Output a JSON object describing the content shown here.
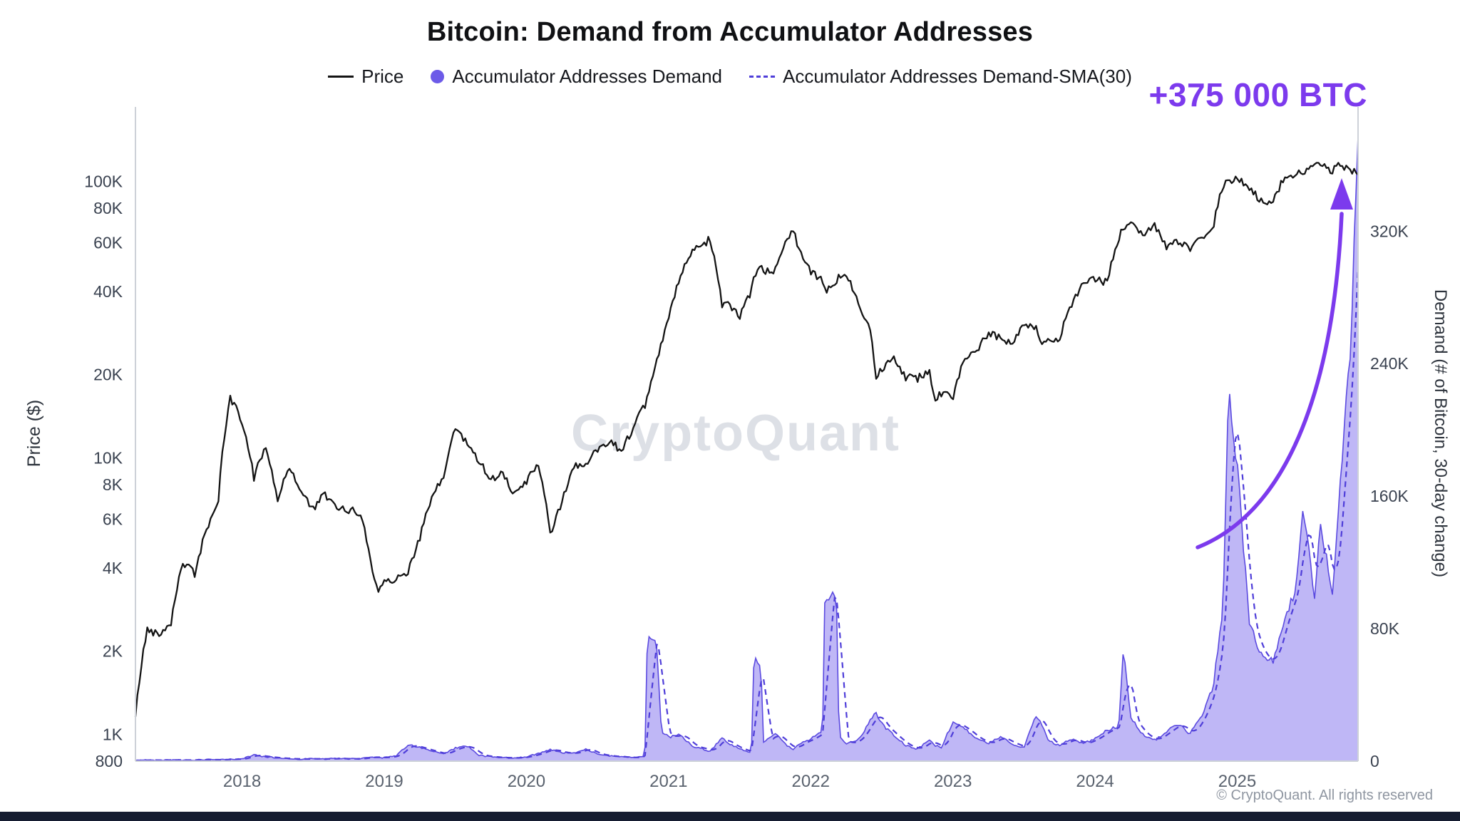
{
  "title": "Bitcoin: Demand from Accumulator Addresses",
  "watermark": "CryptoQuant",
  "footer": "© CryptoQuant. All rights reserved",
  "annotation": {
    "text": "+375 000 BTC",
    "color": "#7C3AED"
  },
  "legend": [
    {
      "label": "Price",
      "type": "line",
      "color": "#141414"
    },
    {
      "label": "Accumulator Addresses Demand",
      "type": "dot",
      "color": "#6C5AE8"
    },
    {
      "label": "Accumulator Addresses Demand-SMA(30)",
      "type": "dashed",
      "color": "#4F3ED9"
    }
  ],
  "colors": {
    "accent": "#7C3AED",
    "spine": "#CDD1D8",
    "tick_text": "#3A4250",
    "x_tick_text": "#5A626E",
    "bottom_bar": "#161D31"
  },
  "chart_data": {
    "type": "line",
    "title": "Bitcoin: Demand from Accumulator Addresses",
    "left_axis": {
      "label": "Price ($)",
      "scale": "log",
      "domain": [
        800,
        186000
      ],
      "ticks": [
        {
          "label": "100K",
          "value": 100000
        },
        {
          "label": "80K",
          "value": 80000
        },
        {
          "label": "60K",
          "value": 60000
        },
        {
          "label": "40K",
          "value": 40000
        },
        {
          "label": "20K",
          "value": 20000
        },
        {
          "label": "10K",
          "value": 10000
        },
        {
          "label": "8K",
          "value": 8000
        },
        {
          "label": "6K",
          "value": 6000
        },
        {
          "label": "4K",
          "value": 4000
        },
        {
          "label": "2K",
          "value": 2000
        },
        {
          "label": "1K",
          "value": 1000
        },
        {
          "label": "800",
          "value": 800
        }
      ]
    },
    "right_axis": {
      "label": "Demand (# of Bitcoin, 30-day change)",
      "scale": "linear",
      "domain": [
        0,
        395000
      ],
      "ticks": [
        {
          "label": "320K",
          "value": 320000
        },
        {
          "label": "240K",
          "value": 240000
        },
        {
          "label": "160K",
          "value": 160000
        },
        {
          "label": "80K",
          "value": 80000
        },
        {
          "label": "0",
          "value": 0
        }
      ]
    },
    "x_axis": {
      "label": "",
      "domain": [
        2017.25,
        2025.85
      ],
      "ticks": [
        {
          "label": "2018",
          "value": 2018
        },
        {
          "label": "2019",
          "value": 2019
        },
        {
          "label": "2020",
          "value": 2020
        },
        {
          "label": "2021",
          "value": 2021
        },
        {
          "label": "2022",
          "value": 2022
        },
        {
          "label": "2023",
          "value": 2023
        },
        {
          "label": "2024",
          "value": 2024
        },
        {
          "label": "2025",
          "value": 2025
        }
      ]
    },
    "x": [
      2017.25,
      2017.333,
      2017.417,
      2017.5,
      2017.583,
      2017.667,
      2017.75,
      2017.833,
      2017.917,
      2018,
      2018.083,
      2018.167,
      2018.25,
      2018.333,
      2018.417,
      2018.5,
      2018.583,
      2018.667,
      2018.75,
      2018.833,
      2018.917,
      2018.96,
      2019,
      2019.083,
      2019.167,
      2019.25,
      2019.333,
      2019.417,
      2019.5,
      2019.583,
      2019.667,
      2019.75,
      2019.833,
      2019.917,
      2020,
      2020.083,
      2020.167,
      2020.25,
      2020.333,
      2020.417,
      2020.5,
      2020.583,
      2020.667,
      2020.75,
      2020.833,
      2020.85,
      2020.917,
      2020.95,
      2021,
      2021.083,
      2021.167,
      2021.25,
      2021.292,
      2021.375,
      2021.417,
      2021.5,
      2021.583,
      2021.6,
      2021.65,
      2021.667,
      2021.75,
      2021.833,
      2021.875,
      2021.917,
      2022,
      2022.083,
      2022.1,
      2022.18,
      2022.2,
      2022.25,
      2022.333,
      2022.417,
      2022.458,
      2022.5,
      2022.583,
      2022.667,
      2022.75,
      2022.833,
      2022.875,
      2022.917,
      2023,
      2023.083,
      2023.167,
      2023.25,
      2023.333,
      2023.417,
      2023.5,
      2023.583,
      2023.625,
      2023.667,
      2023.75,
      2023.833,
      2023.917,
      2024,
      2024.083,
      2024.167,
      2024.2,
      2024.25,
      2024.333,
      2024.417,
      2024.5,
      2024.583,
      2024.667,
      2024.75,
      2024.833,
      2024.9,
      2024.94,
      2025,
      2025.083,
      2025.167,
      2025.25,
      2025.333,
      2025.417,
      2025.458,
      2025.5,
      2025.542,
      2025.583,
      2025.625,
      2025.667,
      2025.708,
      2025.75,
      2025.792,
      2025.85
    ],
    "series": [
      {
        "name": "Price",
        "axis": "left",
        "type": "line",
        "color": "#141414",
        "values": [
          1150,
          2400,
          2300,
          2550,
          4200,
          3800,
          5500,
          7000,
          16500,
          13500,
          8500,
          11000,
          7000,
          9300,
          7500,
          6500,
          7400,
          6500,
          6500,
          6300,
          3900,
          3250,
          3700,
          3600,
          3900,
          5100,
          7100,
          8500,
          12900,
          11200,
          9800,
          8300,
          8900,
          7300,
          8200,
          9600,
          5200,
          6900,
          9400,
          9300,
          10800,
          11600,
          10600,
          12800,
          15400,
          16200,
          22500,
          26000,
          32000,
          45000,
          55500,
          59000,
          62500,
          36000,
          36500,
          32000,
          40000,
          44000,
          48500,
          47000,
          47500,
          62000,
          68500,
          56500,
          47000,
          43500,
          40000,
          42500,
          45500,
          46000,
          36500,
          29500,
          19500,
          21000,
          23500,
          19500,
          19400,
          20800,
          16200,
          17000,
          16600,
          23200,
          24500,
          28200,
          27200,
          26000,
          30300,
          29300,
          26000,
          26300,
          27100,
          35500,
          42500,
          44500,
          43000,
          62000,
          68000,
          71500,
          63500,
          69500,
          58000,
          60500,
          56500,
          63000,
          69000,
          97000,
          99500,
          101500,
          96000,
          84500,
          83500,
          103500,
          106500,
          108000,
          109500,
          117500,
          116500,
          112500,
          109000,
          115000,
          112000,
          109500,
          107000
        ]
      },
      {
        "name": "Accumulator Addresses Demand",
        "axis": "right",
        "type": "area",
        "fill": "#8A7BEF",
        "fill_opacity": 0.55,
        "stroke": "#5B4AE0",
        "values": [
          400,
          700,
          500,
          800,
          600,
          700,
          900,
          800,
          1100,
          1400,
          3800,
          2600,
          1900,
          1500,
          1200,
          1500,
          1300,
          1600,
          1400,
          1500,
          2600,
          2200,
          2100,
          3200,
          9800,
          8200,
          6000,
          4200,
          7800,
          9200,
          3600,
          2600,
          2100,
          1900,
          2600,
          4600,
          7200,
          5200,
          4600,
          7600,
          4200,
          3100,
          2600,
          2100,
          2600,
          74000,
          70000,
          18000,
          14500,
          16000,
          9000,
          7200,
          6000,
          14000,
          11000,
          7200,
          5200,
          63000,
          58000,
          11500,
          16500,
          9500,
          7200,
          10500,
          13500,
          18000,
          101000,
          98000,
          14500,
          10500,
          12500,
          24000,
          29500,
          22500,
          15500,
          9500,
          7200,
          12500,
          9500,
          8200,
          23500,
          19500,
          13500,
          10500,
          14500,
          10500,
          8200,
          27500,
          22500,
          12500,
          9500,
          13500,
          10500,
          13500,
          18500,
          21000,
          68000,
          26500,
          16500,
          12500,
          17500,
          22500,
          16500,
          26500,
          46000,
          92000,
          224000,
          178000,
          86000,
          64000,
          60000,
          86000,
          106000,
          148000,
          134000,
          96000,
          146000,
          124000,
          100000,
          146000,
          196000,
          242000,
          375000
        ]
      },
      {
        "name": "Accumulator Addresses Demand-SMA(30)",
        "axis": "right",
        "type": "line-dashed",
        "color": "#4F3ED9",
        "derived_from": "Accumulator Addresses Demand",
        "window_days": 30
      }
    ]
  }
}
